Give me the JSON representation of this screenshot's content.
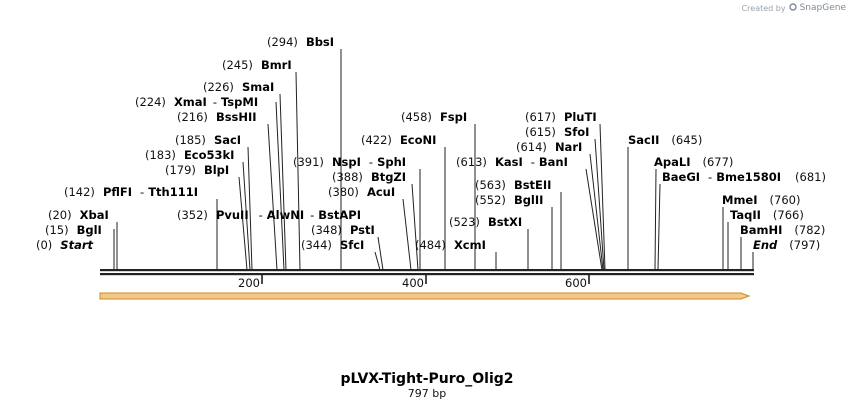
{
  "credit": {
    "prefix": "Created by",
    "brand": "SnapGene"
  },
  "map": {
    "name": "pLVX-Tight-Puro_Olig2",
    "length_label": "797 bp",
    "ticks": [
      "200",
      "400",
      "600"
    ],
    "features": [
      {
        "pos": "(0)",
        "name": "Start",
        "italic": true
      },
      {
        "pos": "(15)",
        "name": "BglI"
      },
      {
        "pos": "(20)",
        "name": "XbaI"
      },
      {
        "pos": "(142)",
        "name": "PflFI",
        "sep": "-",
        "name2": "Tth111I"
      },
      {
        "pos": "(179)",
        "name": "BlpI"
      },
      {
        "pos": "(183)",
        "name": "Eco53kI"
      },
      {
        "pos": "(185)",
        "name": "SacI"
      },
      {
        "pos": "(216)",
        "name": "BssHII"
      },
      {
        "pos": "(224)",
        "name": "XmaI",
        "sep": "-",
        "name2": "TspMI"
      },
      {
        "pos": "(226)",
        "name": "SmaI"
      },
      {
        "pos": "(245)",
        "name": "BmrI"
      },
      {
        "pos": "(294)",
        "name": "BbsI"
      },
      {
        "pos": "(352)",
        "name": "PvuII",
        "sep": "-",
        "name2": "AlwNI",
        "sep2": "-",
        "name3": "BstAPI"
      },
      {
        "pos": "(344)",
        "name": "SfcI"
      },
      {
        "pos": "(348)",
        "name": "PstI"
      },
      {
        "pos": "(380)",
        "name": "AcuI"
      },
      {
        "pos": "(388)",
        "name": "BtgZI"
      },
      {
        "pos": "(391)",
        "name": "NspI",
        "sep": "-",
        "name2": "SphI"
      },
      {
        "pos": "(422)",
        "name": "EcoNI"
      },
      {
        "pos": "(458)",
        "name": "FspI"
      },
      {
        "pos": "(484)",
        "name": "XcmI"
      },
      {
        "pos": "(523)",
        "name": "BstXI"
      },
      {
        "pos": "(552)",
        "name": "BglII"
      },
      {
        "pos": "(563)",
        "name": "BstEII"
      },
      {
        "pos": "(613)",
        "name": "KasI",
        "sep": "-",
        "name2": "BanI"
      },
      {
        "pos": "(614)",
        "name": "NarI"
      },
      {
        "pos": "(615)",
        "name": "SfoI"
      },
      {
        "pos": "(617)",
        "name": "PluTI"
      },
      {
        "pos": "(645)",
        "name": "SacII"
      },
      {
        "pos": "(677)",
        "name": "ApaLI"
      },
      {
        "pos": "(681)",
        "name": "BaeGI",
        "sep": "-",
        "name2": "Bme1580I"
      },
      {
        "pos": "(760)",
        "name": "MmeI"
      },
      {
        "pos": "(766)",
        "name": "TaqII"
      },
      {
        "pos": "(782)",
        "name": "BamHI"
      },
      {
        "pos": "(797)",
        "name": "End",
        "italic": true
      }
    ]
  },
  "colors": {
    "arrow_fill": "#f3c98b",
    "arrow_stroke": "#cf8a1e",
    "backbone": "#222222"
  }
}
